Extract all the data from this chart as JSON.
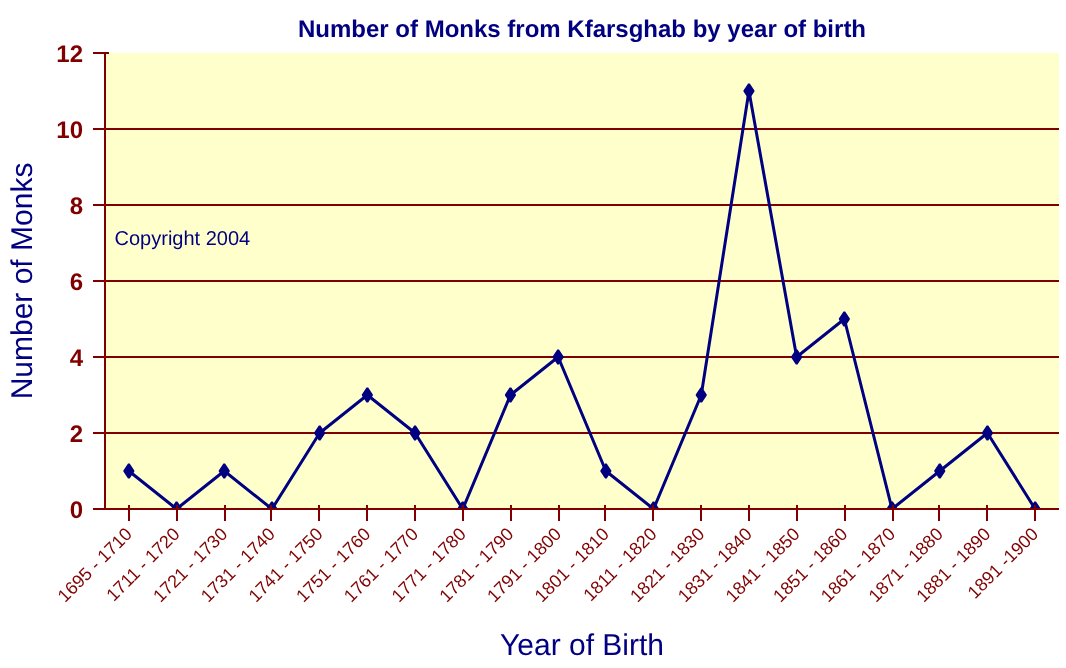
{
  "chart_data": {
    "type": "line",
    "title": "Number of Monks from Kfarsghab by year of birth",
    "xlabel": "Year of Birth",
    "ylabel": "Number of Monks",
    "categories": [
      "1695 - 1710",
      "1711 - 1720",
      "1721 - 1730",
      "1731 - 1740",
      "1741 - 1750",
      "1751 - 1760",
      "1761 - 1770",
      "1771 - 1780",
      "1781 - 1790",
      "1791 - 1800",
      "1801 - 1810",
      "1811 - 1820",
      "1821 - 1830",
      "1831 - 1840",
      "1841 - 1850",
      "1851 - 1860",
      "1861 - 1870",
      "1871 - 1880",
      "1881 - 1890",
      "1891 -1900"
    ],
    "series": [
      {
        "color": "#000080",
        "values": [
          1,
          0,
          1,
          0,
          2,
          3,
          2,
          0,
          3,
          4,
          1,
          0,
          3,
          11,
          4,
          5,
          0,
          1,
          2,
          0
        ]
      }
    ],
    "ylim": [
      0,
      12
    ],
    "yticks": [
      0,
      2,
      4,
      6,
      8,
      10,
      12
    ],
    "grid": "y",
    "marker": "diamond",
    "line_style": "solid",
    "annotations": [
      "Copyright 2004"
    ]
  }
}
